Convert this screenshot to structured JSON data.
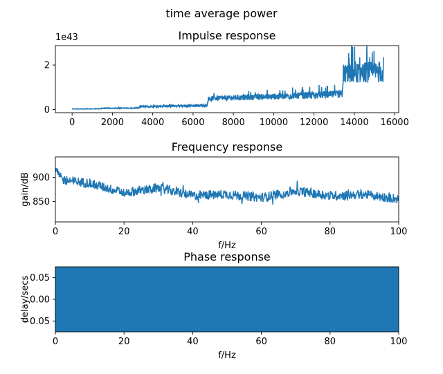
{
  "figure": {
    "suptitle": "time average power",
    "line_color": "#1f77b4"
  },
  "chart_data": [
    {
      "type": "line",
      "title": "Impulse response",
      "xlabel": "",
      "ylabel": "",
      "offset_text": "1e43",
      "xlim": [
        -830,
        16200
      ],
      "ylim": [
        -0.14,
        2.87
      ],
      "xticks": [
        0,
        2000,
        4000,
        6000,
        8000,
        10000,
        12000,
        14000,
        16000
      ],
      "xtick_labels": [
        "0",
        "2000",
        "4000",
        "6000",
        "8000",
        "10000",
        "12000",
        "14000",
        "16000"
      ],
      "yticks": [
        0,
        2
      ],
      "ytick_labels": [
        "0",
        "2"
      ],
      "grid": false,
      "envelope_units": "1e43",
      "envelope": [
        {
          "x": 0,
          "y": 0.02,
          "amp": 0.01
        },
        {
          "x": 1400,
          "y": 0.03,
          "amp": 0.01
        },
        {
          "x": 1450,
          "y": 0.05,
          "amp": 0.015
        },
        {
          "x": 3300,
          "y": 0.06,
          "amp": 0.02
        },
        {
          "x": 3350,
          "y": 0.12,
          "amp": 0.04
        },
        {
          "x": 6700,
          "y": 0.16,
          "amp": 0.06
        },
        {
          "x": 6750,
          "y": 0.45,
          "amp": 0.12
        },
        {
          "x": 13400,
          "y": 0.62,
          "amp": 0.22
        },
        {
          "x": 13450,
          "y": 1.45,
          "amp": 0.55
        },
        {
          "x": 15450,
          "y": 1.5,
          "amp": 0.6
        }
      ]
    },
    {
      "type": "line",
      "title": "Frequency response",
      "xlabel": "f/Hz",
      "ylabel": "gain/dB",
      "xlim": [
        0,
        100
      ],
      "ylim": [
        808,
        942
      ],
      "xticks": [
        0,
        20,
        40,
        60,
        80,
        100
      ],
      "xtick_labels": [
        "0",
        "20",
        "40",
        "60",
        "80",
        "100"
      ],
      "yticks": [
        850,
        900
      ],
      "ytick_labels": [
        "850",
        "900"
      ],
      "grid": false,
      "trend": [
        {
          "x": 0,
          "y": 915
        },
        {
          "x": 2,
          "y": 895
        },
        {
          "x": 10,
          "y": 888
        },
        {
          "x": 20,
          "y": 868
        },
        {
          "x": 30,
          "y": 878
        },
        {
          "x": 40,
          "y": 862
        },
        {
          "x": 50,
          "y": 865
        },
        {
          "x": 60,
          "y": 858
        },
        {
          "x": 70,
          "y": 872
        },
        {
          "x": 80,
          "y": 862
        },
        {
          "x": 90,
          "y": 865
        },
        {
          "x": 100,
          "y": 855
        }
      ],
      "noise_amplitude_db": 14
    },
    {
      "type": "area",
      "title": "Phase response",
      "xlabel": "f/Hz",
      "ylabel": "delay/secs",
      "xlim": [
        0,
        100
      ],
      "ylim": [
        -0.075,
        0.075
      ],
      "xticks": [
        0,
        20,
        40,
        60,
        80,
        100
      ],
      "xtick_labels": [
        "0",
        "20",
        "40",
        "60",
        "80",
        "100"
      ],
      "yticks": [
        0.05,
        0.0,
        -0.05
      ],
      "ytick_labels": [
        "0.05",
        "0.00",
        "−0.05"
      ],
      "grid": false,
      "fill_range": [
        -0.075,
        0.075
      ]
    }
  ]
}
